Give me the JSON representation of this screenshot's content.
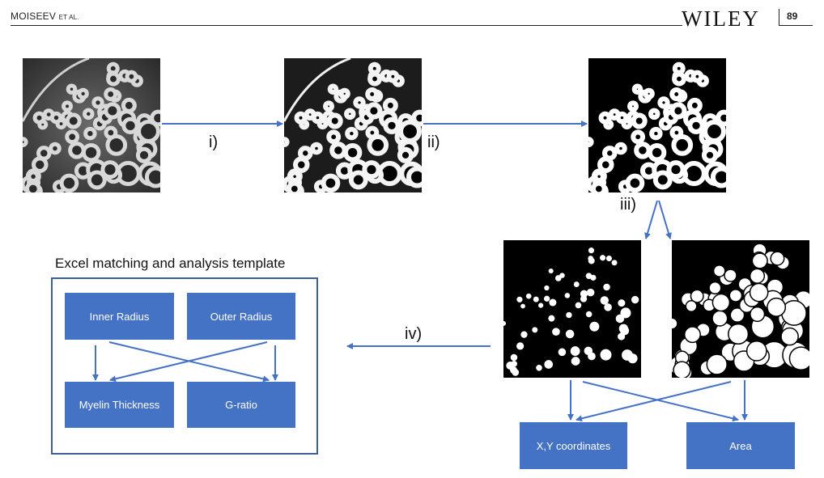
{
  "header": {
    "authors_main": "MOISEEV",
    "authors_suffix": "ET AL.",
    "publisher": "WILEY",
    "page_number": "89"
  },
  "steps": {
    "i": "i)",
    "ii": "ii)",
    "iii": "iii)",
    "iv": "iv)"
  },
  "template_caption": "Excel matching and analysis template",
  "template_boxes": {
    "inner_radius": "Inner Radius",
    "outer_radius": "Outer Radius",
    "myelin_thickness": "Myelin Thickness",
    "g_ratio": "G-ratio"
  },
  "output_boxes": {
    "xy": "X,Y coordinates",
    "area": "Area"
  },
  "colors": {
    "arrow": "#4472c4",
    "box_fill": "#4472c4",
    "frame": "#3f5f98"
  }
}
